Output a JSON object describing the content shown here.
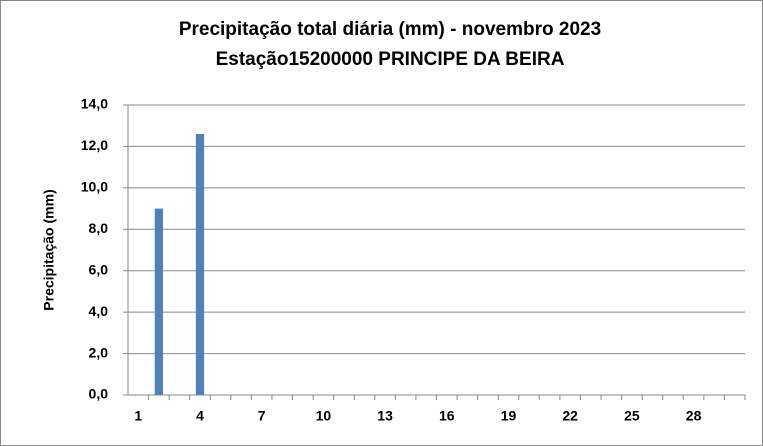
{
  "chart_data": {
    "type": "bar",
    "title": "Precipitação total diária (mm) - novembro 2023",
    "subtitle": "Estação15200000 PRINCIPE DA BEIRA",
    "y_label": "Precipitação (mm)",
    "categories": [
      "1",
      null,
      null,
      "4",
      null,
      null,
      "7",
      null,
      null,
      "10",
      null,
      null,
      "13",
      null,
      null,
      "16",
      null,
      null,
      "19",
      null,
      null,
      "22",
      null,
      null,
      "25",
      null,
      null,
      "28",
      null,
      null
    ],
    "values": [
      0,
      9.0,
      0,
      12.6,
      0,
      0,
      0,
      0,
      0,
      0,
      0,
      0,
      0,
      0,
      0,
      0,
      0,
      0,
      0,
      0,
      0,
      0,
      0,
      0,
      0,
      0,
      0,
      0,
      0,
      0
    ],
    "color": "#4f81bd",
    "ylim": [
      0,
      14
    ],
    "yticks": [
      {
        "value": 0,
        "label": "0,0"
      },
      {
        "value": 2,
        "label": "2,0"
      },
      {
        "value": 4,
        "label": "4,0"
      },
      {
        "value": 6,
        "label": "6,0"
      },
      {
        "value": 8,
        "label": "8,0"
      },
      {
        "value": 10,
        "label": "10,0"
      },
      {
        "value": 12,
        "label": "12,0"
      },
      {
        "value": 14,
        "label": "14,0"
      }
    ],
    "grid": true
  }
}
